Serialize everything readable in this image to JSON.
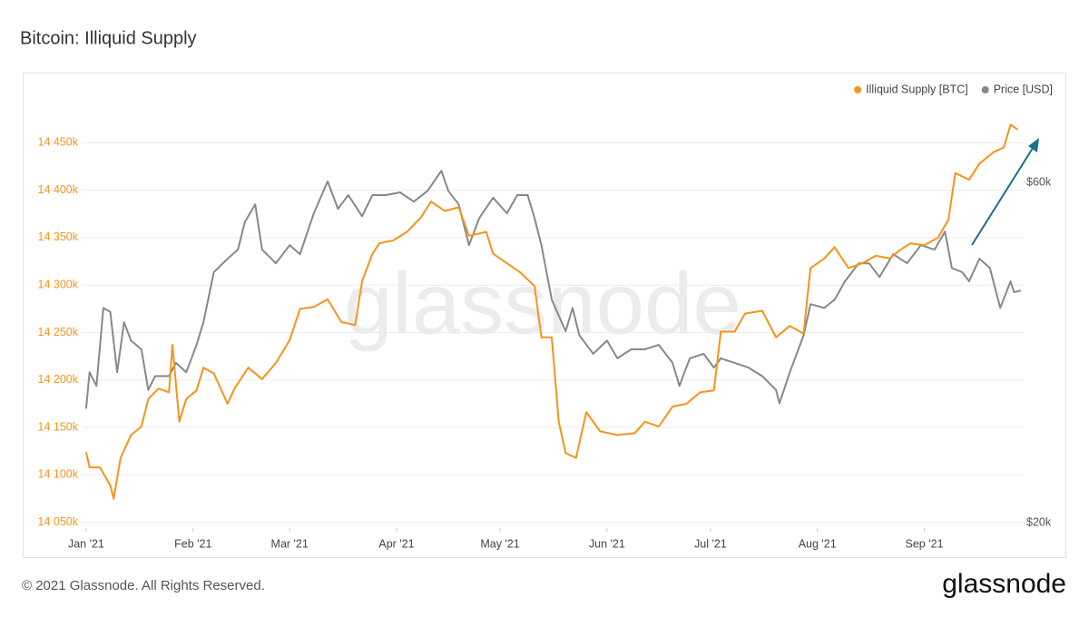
{
  "chart_data": {
    "type": "line",
    "title": "Bitcoin: Illiquid Supply",
    "watermark": "glassnode",
    "xlim": [
      -1.3,
      271.8
    ],
    "xticks": [
      {
        "value": 0,
        "label": "Jan '21"
      },
      {
        "value": 31,
        "label": "Feb '21"
      },
      {
        "value": 59,
        "label": "Mar '21"
      },
      {
        "value": 90,
        "label": "Apr '21"
      },
      {
        "value": 120,
        "label": "May '21"
      },
      {
        "value": 151,
        "label": "Jun '21"
      },
      {
        "value": 181,
        "label": "Jul '21"
      },
      {
        "value": 212,
        "label": "Aug '21"
      },
      {
        "value": 243,
        "label": "Sep '21"
      }
    ],
    "ylim": [
      14044000,
      14500000
    ],
    "yticks": [
      {
        "value": 14050000,
        "label": "14 050k"
      },
      {
        "value": 14100000,
        "label": "14 100k"
      },
      {
        "value": 14150000,
        "label": "14 150k"
      },
      {
        "value": 14200000,
        "label": "14 200k"
      },
      {
        "value": 14250000,
        "label": "14 250k"
      },
      {
        "value": 14300000,
        "label": "14 300k"
      },
      {
        "value": 14350000,
        "label": "14 350k"
      },
      {
        "value": 14400000,
        "label": "14 400k"
      },
      {
        "value": 14450000,
        "label": "14 450k"
      }
    ],
    "y2lim": [
      19650,
      79500
    ],
    "y2scale": "log",
    "y2ticks": [
      {
        "value": 20000,
        "label": "$20k"
      },
      {
        "value": 60000,
        "label": "$60k"
      }
    ],
    "grid": true,
    "legend": "top-right",
    "series": [
      {
        "name": "Illiquid Supply [BTC]",
        "color": "#f7931a",
        "x": [
          0,
          1,
          4,
          7,
          8,
          10,
          13,
          16,
          18,
          21,
          24,
          25,
          27,
          29,
          32,
          34,
          37,
          41,
          43,
          47,
          51,
          55,
          59,
          62,
          66,
          70,
          74,
          78,
          80,
          83,
          85,
          89,
          93,
          97,
          100,
          104,
          108,
          111,
          116,
          118,
          122,
          126,
          130,
          132,
          135,
          137,
          139,
          142,
          145,
          149,
          154,
          159,
          162,
          166,
          170,
          174,
          178,
          182,
          184,
          188,
          191,
          196,
          200,
          204,
          208,
          210,
          214,
          217,
          221,
          225,
          229,
          233,
          236,
          239,
          243,
          247,
          250,
          252,
          256,
          259,
          263,
          266,
          268,
          270
        ],
        "values": [
          14124000,
          14108000,
          14108000,
          14089000,
          14075000,
          14118000,
          14142000,
          14151000,
          14180000,
          14191000,
          14187000,
          14237000,
          14156000,
          14180000,
          14189000,
          14213000,
          14207000,
          14175000,
          14191000,
          14213000,
          14201000,
          14218000,
          14242000,
          14275000,
          14277000,
          14285000,
          14261000,
          14258000,
          14304000,
          14333000,
          14344000,
          14347000,
          14356000,
          14371000,
          14388000,
          14378000,
          14382000,
          14352000,
          14356000,
          14333000,
          14323000,
          14313000,
          14299000,
          14245000,
          14245000,
          14156000,
          14123000,
          14118000,
          14166000,
          14146000,
          14142000,
          14144000,
          14156000,
          14151000,
          14172000,
          14175000,
          14187000,
          14189000,
          14251000,
          14251000,
          14270000,
          14273000,
          14245000,
          14257000,
          14249000,
          14318000,
          14328000,
          14340000,
          14318000,
          14323000,
          14331000,
          14328000,
          14337000,
          14344000,
          14342000,
          14350000,
          14369000,
          14418000,
          14411000,
          14428000,
          14440000,
          14445000,
          14469000,
          14464000
        ]
      },
      {
        "name": "Price [USD]",
        "color": "#888888",
        "axis": "y2",
        "x": [
          0,
          1,
          3,
          5,
          7,
          9,
          11,
          13,
          16,
          18,
          20,
          24,
          26,
          29,
          32,
          34,
          37,
          41,
          44,
          46,
          49,
          51,
          55,
          59,
          62,
          66,
          70,
          73,
          76,
          80,
          83,
          87,
          91,
          95,
          99,
          103,
          105,
          108,
          111,
          114,
          118,
          122,
          125,
          128,
          130,
          132,
          135,
          139,
          141,
          143,
          147,
          151,
          154,
          158,
          162,
          166,
          170,
          172,
          175,
          179,
          182,
          184,
          188,
          192,
          196,
          200,
          201,
          204,
          208,
          210,
          214,
          217,
          220,
          224,
          227,
          230,
          234,
          238,
          242,
          246,
          249,
          251,
          254,
          256,
          259,
          262,
          265,
          268,
          269,
          271
        ],
        "values": [
          28900,
          32500,
          31100,
          40000,
          39500,
          32500,
          38200,
          36000,
          35000,
          30700,
          32100,
          32100,
          33500,
          32500,
          35500,
          38200,
          44900,
          46900,
          48300,
          52800,
          55900,
          48300,
          46200,
          49000,
          47600,
          54300,
          60200,
          55100,
          57600,
          53800,
          57600,
          57600,
          58100,
          56400,
          58400,
          62300,
          58400,
          55900,
          49000,
          53500,
          57100,
          54300,
          57600,
          57600,
          53500,
          49000,
          41100,
          37100,
          40000,
          36600,
          34500,
          36000,
          34000,
          35000,
          35000,
          35500,
          33500,
          31100,
          34000,
          34500,
          33000,
          34000,
          33500,
          33000,
          32100,
          30700,
          29400,
          32500,
          36600,
          40500,
          40000,
          41100,
          43600,
          46200,
          46200,
          44200,
          47600,
          46200,
          49000,
          48300,
          51200,
          45500,
          44900,
          43600,
          46900,
          45500,
          40000,
          43600,
          42100,
          42300
        ]
      }
    ]
  },
  "footer": {
    "copyright": "© 2021 Glassnode. All Rights Reserved.",
    "logo": "glassnode"
  }
}
